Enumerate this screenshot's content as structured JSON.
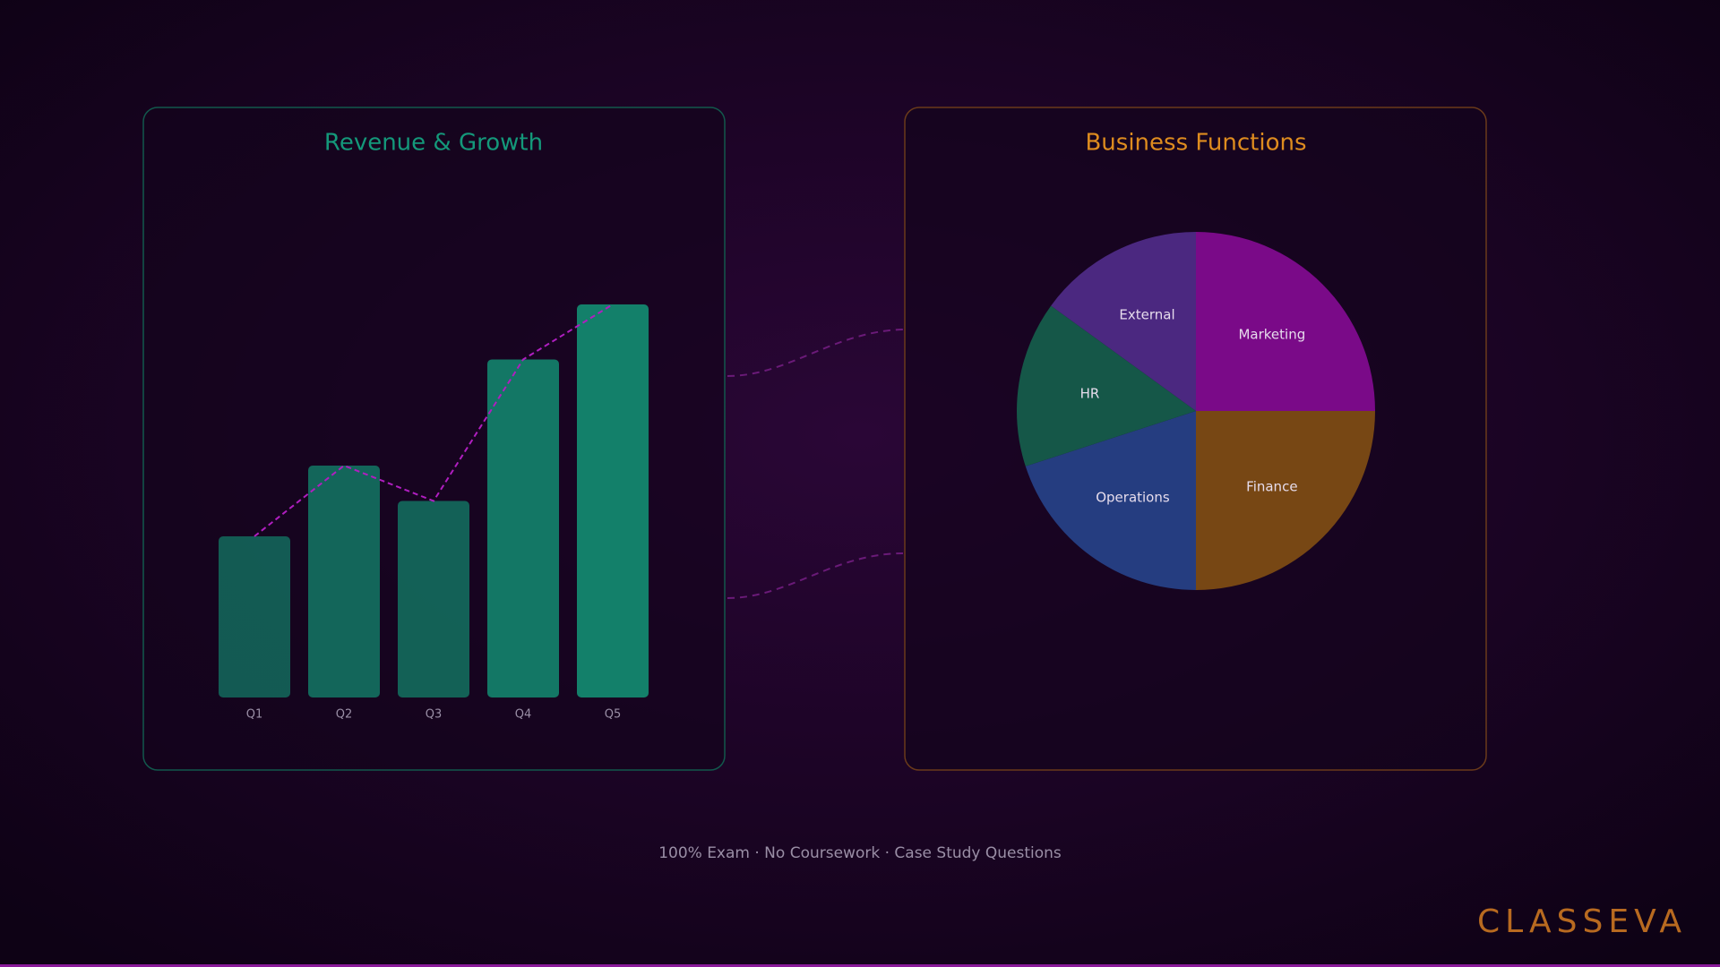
{
  "chart_data": [
    {
      "type": "bar",
      "title": "Revenue & Growth",
      "categories": [
        "Q1",
        "Q2",
        "Q3",
        "Q4",
        "Q5"
      ],
      "values": [
        41,
        59,
        50,
        86,
        100
      ],
      "color": "#13806a",
      "line_color": "#b01ec0",
      "ylim": [
        0,
        100
      ]
    },
    {
      "type": "pie",
      "title": "Business Functions",
      "categories": [
        "Marketing",
        "Finance",
        "Operations",
        "HR",
        "External"
      ],
      "values": [
        25,
        25,
        20,
        15,
        15
      ],
      "colors": [
        "#7a0a88",
        "#774714",
        "#253d80",
        "#155748",
        "#4b2880"
      ]
    }
  ],
  "footer": "100% Exam · No Coursework · Case Study Questions",
  "brand": "CLASSEVA"
}
